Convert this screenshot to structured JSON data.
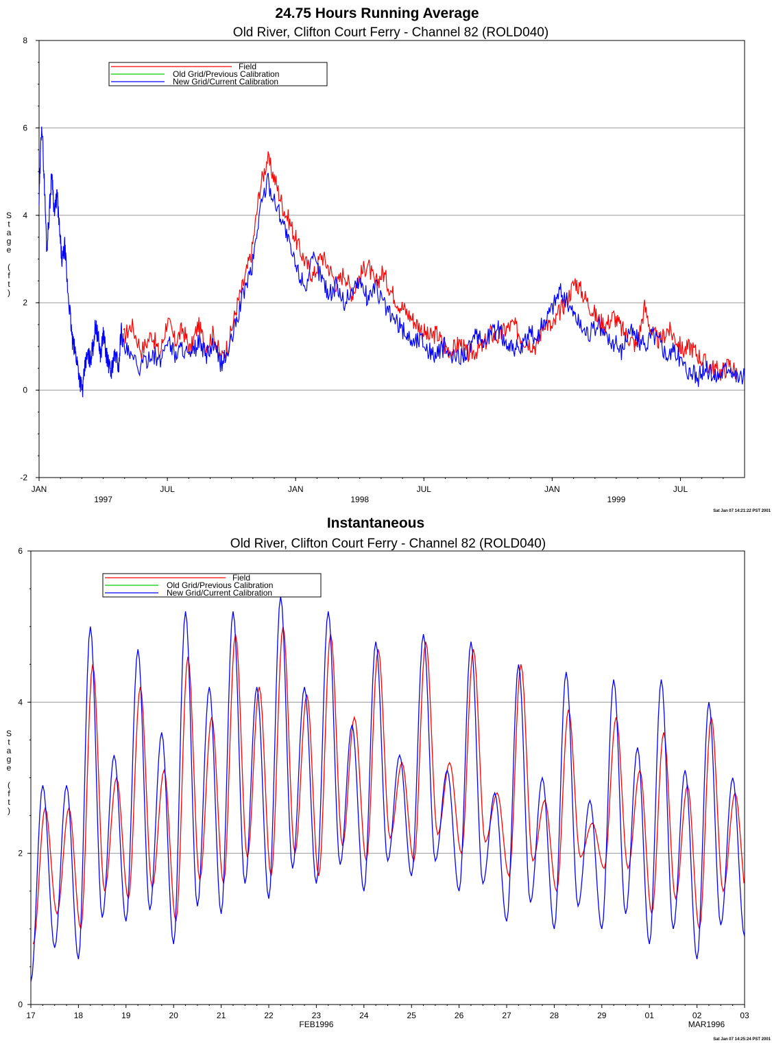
{
  "chart_data": [
    {
      "type": "line",
      "title": "24.75 Hours Running Average",
      "subtitle": "Old River, Clifton Court Ferry - Channel 82 (ROLD040)",
      "ylabel": "Stage (ft)",
      "ylim": [
        -2,
        8
      ],
      "yticks": [
        -2,
        0,
        2,
        4,
        6,
        8
      ],
      "x_tick_labels": [
        "JAN",
        "JUL",
        "JAN",
        "JUL",
        "JAN",
        "JUL"
      ],
      "x_year_labels": [
        "1997",
        "1998",
        "1999"
      ],
      "grid": "horizontal",
      "legend_position": "top-left",
      "timestamp": "Sat Jan 07 14:21:22 PST 2001",
      "series": [
        {
          "name": "Field",
          "color": "#ff0000",
          "x": [
            0.33,
            0.36,
            0.4,
            0.44,
            0.47,
            0.5,
            0.53,
            0.56,
            0.59,
            0.62,
            0.65,
            0.68,
            0.71,
            0.74,
            0.77,
            0.8,
            0.83,
            0.86,
            0.89,
            0.92,
            0.95,
            0.98,
            1.01,
            1.04,
            1.07,
            1.1,
            1.13,
            1.16,
            1.19,
            1.22,
            1.25,
            1.28,
            1.31,
            1.34,
            1.37,
            1.4,
            1.43,
            1.46,
            1.49,
            1.52,
            1.55,
            1.58,
            1.61,
            1.64,
            1.67,
            1.7,
            1.73,
            1.76,
            1.79,
            1.82,
            1.85,
            1.88,
            1.91,
            1.94,
            1.97,
            2.0,
            2.03,
            2.06,
            2.09,
            2.12,
            2.15,
            2.18,
            2.21,
            2.24,
            2.27,
            2.3,
            2.33,
            2.36,
            2.39,
            2.42,
            2.45,
            2.48,
            2.51,
            2.54,
            2.57,
            2.6,
            2.63,
            2.66,
            2.69,
            2.72
          ],
          "y": [
            1.2,
            1.5,
            0.9,
            1.3,
            0.8,
            1.6,
            1.1,
            1.4,
            0.9,
            1.5,
            1.0,
            1.3,
            0.7,
            1.1,
            1.9,
            2.5,
            3.2,
            4.6,
            5.3,
            4.8,
            4.2,
            3.8,
            3.3,
            2.9,
            2.6,
            3.1,
            2.8,
            2.4,
            2.7,
            2.2,
            2.6,
            2.9,
            2.4,
            2.7,
            2.3,
            2.0,
            1.8,
            1.6,
            1.4,
            1.2,
            1.3,
            1.0,
            0.9,
            1.1,
            0.8,
            0.9,
            1.0,
            1.3,
            1.2,
            1.4,
            1.5,
            1.2,
            1.1,
            1.0,
            1.6,
            1.4,
            1.8,
            2.1,
            2.5,
            2.2,
            1.9,
            1.6,
            1.5,
            1.7,
            1.4,
            1.2,
            1.0,
            1.9,
            1.3,
            1.1,
            1.4,
            1.2,
            0.9,
            1.0,
            0.8,
            0.6,
            0.5,
            0.4,
            0.6,
            0.4
          ]
        },
        {
          "name": "Old Grid/Previous Calibration",
          "color": "#00cc00",
          "x": [],
          "y": []
        },
        {
          "name": "New Grid/Current Calibration",
          "color": "#0000ff",
          "x": [
            0.0,
            0.01,
            0.02,
            0.03,
            0.04,
            0.05,
            0.06,
            0.07,
            0.08,
            0.09,
            0.1,
            0.11,
            0.12,
            0.13,
            0.14,
            0.15,
            0.16,
            0.17,
            0.18,
            0.19,
            0.2,
            0.21,
            0.22,
            0.23,
            0.24,
            0.25,
            0.26,
            0.27,
            0.28,
            0.29,
            0.3,
            0.31,
            0.32,
            0.33,
            0.36,
            0.4,
            0.44,
            0.47,
            0.5,
            0.53,
            0.56,
            0.59,
            0.62,
            0.65,
            0.68,
            0.71,
            0.74,
            0.77,
            0.8,
            0.83,
            0.86,
            0.89,
            0.92,
            0.95,
            0.98,
            1.01,
            1.04,
            1.07,
            1.1,
            1.13,
            1.16,
            1.19,
            1.22,
            1.25,
            1.28,
            1.31,
            1.34,
            1.37,
            1.4,
            1.43,
            1.46,
            1.49,
            1.52,
            1.55,
            1.58,
            1.61,
            1.64,
            1.67,
            1.7,
            1.73,
            1.76,
            1.79,
            1.82,
            1.85,
            1.88,
            1.91,
            1.94,
            1.97,
            2.0,
            2.03,
            2.06,
            2.09,
            2.12,
            2.15,
            2.18,
            2.21,
            2.24,
            2.27,
            2.3,
            2.33,
            2.36,
            2.39,
            2.42,
            2.45,
            2.48,
            2.51,
            2.54,
            2.57,
            2.6,
            2.63,
            2.66,
            2.69,
            2.72,
            2.75
          ],
          "y": [
            4.3,
            6.2,
            4.8,
            3.2,
            4.1,
            5.0,
            4.0,
            4.5,
            3.6,
            2.9,
            3.3,
            2.4,
            1.8,
            1.1,
            0.9,
            0.6,
            0.2,
            0.0,
            0.6,
            0.8,
            0.7,
            1.0,
            1.5,
            1.2,
            0.8,
            1.3,
            0.9,
            0.6,
            0.4,
            0.7,
            0.8,
            0.5,
            1.4,
            1.0,
            0.7,
            0.5,
            0.9,
            0.6,
            1.2,
            0.8,
            1.0,
            0.7,
            1.1,
            0.8,
            1.0,
            0.6,
            0.9,
            1.6,
            2.3,
            2.8,
            4.1,
            4.8,
            4.3,
            3.9,
            3.2,
            2.7,
            2.4,
            3.0,
            2.6,
            2.2,
            2.4,
            2.0,
            2.3,
            2.5,
            2.1,
            2.4,
            2.0,
            1.7,
            1.5,
            1.3,
            1.1,
            1.2,
            0.9,
            0.8,
            1.0,
            0.7,
            0.8,
            0.9,
            1.2,
            1.1,
            1.3,
            1.4,
            1.1,
            1.0,
            0.9,
            1.3,
            1.2,
            1.6,
            1.9,
            2.3,
            2.0,
            1.7,
            1.4,
            1.3,
            1.5,
            1.2,
            1.1,
            0.9,
            1.4,
            1.2,
            1.0,
            1.3,
            1.1,
            0.8,
            0.9,
            0.6,
            0.4,
            0.3,
            0.5,
            0.3,
            0.4,
            0.6,
            0.3,
            0.3
          ]
        }
      ]
    },
    {
      "type": "line",
      "title": "Instantaneous",
      "subtitle": "Old River, Clifton Court Ferry - Channel 82 (ROLD040)",
      "ylabel": "Stage (ft)",
      "ylim": [
        0,
        6
      ],
      "yticks": [
        0,
        2,
        4,
        6
      ],
      "x_tick_labels": [
        "17",
        "18",
        "19",
        "20",
        "21",
        "22",
        "23",
        "24",
        "25",
        "26",
        "27",
        "28",
        "29",
        "01",
        "02",
        "03"
      ],
      "x_month_labels": [
        "FEB1996",
        "MAR1996"
      ],
      "xlim": [
        17,
        32
      ],
      "grid": "horizontal",
      "legend_position": "top-left",
      "timestamp": "Sat Jan 07 14:25:24 PST 2001",
      "series": [
        {
          "name": "Field",
          "color": "#ff0000",
          "peaks_high": [
            2.6,
            4.5,
            4.2,
            4.6,
            4.9,
            5.0,
            4.9,
            4.7,
            4.8,
            4.7,
            4.5,
            3.9,
            3.8,
            3.6,
            3.8,
            3.7
          ],
          "peaks_low": [
            2.6,
            3.0,
            3.1,
            3.8,
            4.2,
            4.1,
            3.8,
            3.2,
            3.2,
            2.8,
            2.7,
            2.4,
            3.1,
            2.9,
            2.8
          ],
          "troughs": [
            0.8,
            1.0,
            1.4,
            1.1,
            1.6,
            1.7,
            1.7,
            1.9,
            1.9,
            2.0,
            1.7,
            1.5,
            1.8,
            1.2,
            1.0,
            1.4
          ]
        },
        {
          "name": "Old Grid/Previous Calibration",
          "color": "#00cc00",
          "x": [],
          "y": []
        },
        {
          "name": "New Grid/Current Calibration",
          "color": "#0000ff",
          "peaks_high": [
            2.9,
            5.0,
            4.7,
            5.2,
            5.2,
            5.4,
            5.2,
            4.8,
            4.9,
            4.8,
            4.5,
            4.4,
            4.3,
            4.3,
            4.0,
            4.1
          ],
          "peaks_low": [
            2.9,
            3.3,
            3.6,
            4.2,
            4.2,
            4.2,
            3.7,
            3.3,
            3.1,
            2.8,
            3.0,
            2.7,
            3.4,
            3.1,
            3.0
          ],
          "troughs": [
            0.3,
            0.6,
            1.1,
            0.8,
            1.2,
            1.4,
            1.6,
            1.5,
            1.7,
            1.5,
            1.1,
            1.0,
            1.0,
            0.8,
            0.6,
            0.9
          ]
        }
      ]
    }
  ]
}
